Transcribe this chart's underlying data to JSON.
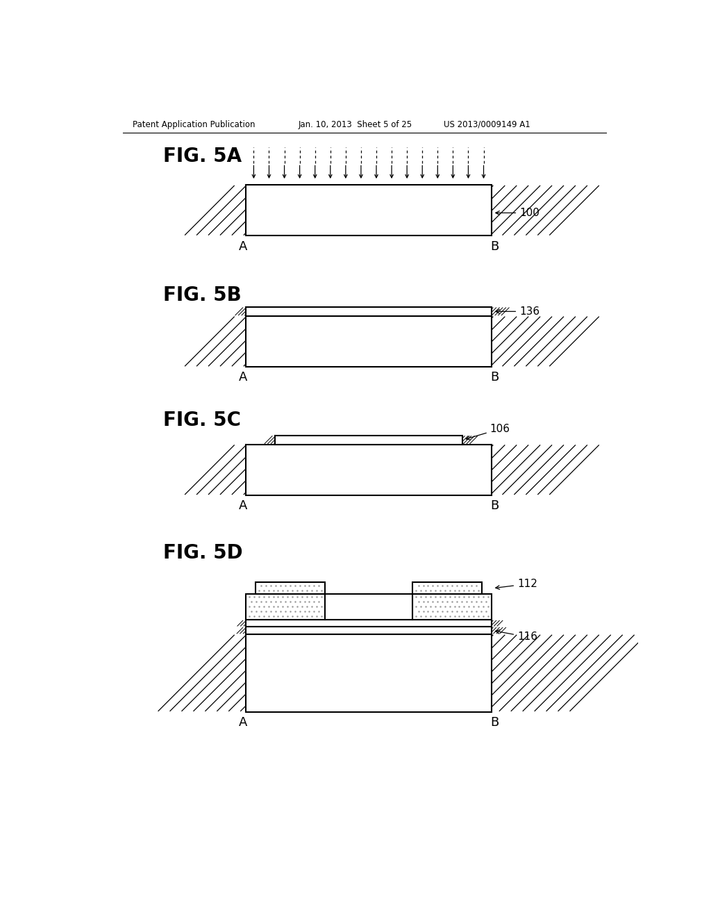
{
  "header_left": "Patent Application Publication",
  "header_mid": "Jan. 10, 2013  Sheet 5 of 25",
  "header_right": "US 2013/0009149 A1",
  "fig5a_label": "FIG. 5A",
  "fig5b_label": "FIG. 5B",
  "fig5c_label": "FIG. 5C",
  "fig5d_label": "FIG. 5D",
  "bg_color": "#ffffff",
  "line_color": "#000000",
  "label_100": "100",
  "label_136": "136",
  "label_106": "106",
  "label_112": "112",
  "label_116": "116"
}
